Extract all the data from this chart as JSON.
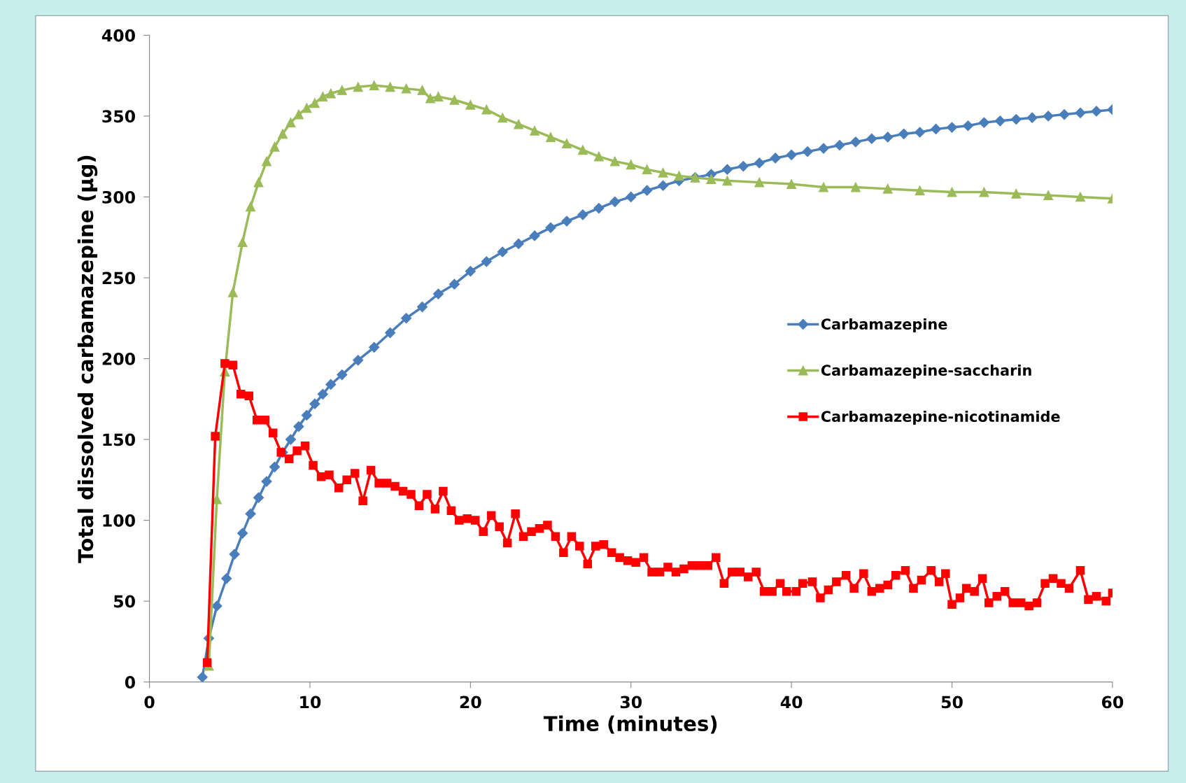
{
  "chart_data": {
    "type": "line",
    "xlabel": "Time (minutes)",
    "ylabel": "Total dissolved carbamazepine (µg)",
    "xlim": [
      0,
      60
    ],
    "ylim": [
      0,
      400
    ],
    "xticks": [
      0,
      10,
      20,
      30,
      40,
      50,
      60
    ],
    "yticks": [
      0,
      50,
      100,
      150,
      200,
      250,
      300,
      350,
      400
    ],
    "grid": false,
    "legend": "right",
    "series": [
      {
        "name": "Carbamazepine",
        "color": "#4a7ebb",
        "marker": "diamond",
        "x": [
          3.3,
          3.7,
          4.2,
          4.8,
          5.3,
          5.8,
          6.3,
          6.8,
          7.3,
          7.8,
          8.3,
          8.8,
          9.3,
          9.8,
          10.3,
          10.8,
          11.3,
          12,
          13,
          14,
          15,
          16,
          17,
          18,
          19,
          20,
          21,
          22,
          23,
          24,
          25,
          26,
          27,
          28,
          29,
          30,
          31,
          32,
          33,
          34,
          35,
          36,
          37,
          38,
          39,
          40,
          41,
          42,
          43,
          44,
          45,
          46,
          47,
          48,
          49,
          50,
          51,
          52,
          53,
          54,
          55,
          56,
          57,
          58,
          59,
          60
        ],
        "values": [
          3,
          27,
          47,
          64,
          79,
          92,
          104,
          114,
          124,
          133,
          142,
          150,
          158,
          165,
          172,
          178,
          184,
          190,
          199,
          207,
          216,
          225,
          232,
          240,
          246,
          254,
          260,
          266,
          271,
          276,
          281,
          285,
          289,
          293,
          297,
          300,
          304,
          307,
          310,
          312,
          314,
          317,
          319,
          321,
          324,
          326,
          328,
          330,
          332,
          334,
          336,
          337,
          339,
          340,
          342,
          343,
          344,
          346,
          347,
          348,
          349,
          350,
          351,
          352,
          353,
          354
        ]
      },
      {
        "name": "Carbamazepine-saccharin",
        "color": "#9bbb59",
        "marker": "triangle",
        "x": [
          3.7,
          4.2,
          4.7,
          5.2,
          5.8,
          6.3,
          6.8,
          7.3,
          7.8,
          8.3,
          8.8,
          9.3,
          9.8,
          10.3,
          10.8,
          11.3,
          12,
          13,
          14,
          15,
          16,
          17,
          17.5,
          18,
          19,
          20,
          21,
          22,
          23,
          24,
          25,
          26,
          27,
          28,
          29,
          30,
          31,
          32,
          33,
          34,
          35,
          36,
          38,
          40,
          42,
          44,
          46,
          48,
          50,
          52,
          54,
          56,
          58,
          60
        ],
        "values": [
          10,
          113,
          192,
          241,
          272,
          294,
          309,
          322,
          331,
          339,
          346,
          351,
          355,
          358,
          362,
          364,
          366,
          368,
          369,
          368,
          367,
          366,
          361,
          362,
          360,
          357,
          354,
          349,
          345,
          341,
          337,
          333,
          329,
          325,
          322,
          320,
          317,
          315,
          313,
          312,
          311,
          310,
          309,
          308,
          306,
          306,
          305,
          304,
          303,
          303,
          302,
          301,
          300,
          299
        ]
      },
      {
        "name": "Carbamazepine-nicotinamide",
        "color": "#ff0000",
        "marker": "square",
        "x": [
          3.6,
          4.1,
          4.7,
          5.2,
          5.7,
          6.2,
          6.7,
          7.2,
          7.7,
          8.2,
          8.7,
          9.2,
          9.7,
          10.2,
          10.7,
          11.2,
          11.8,
          12.3,
          12.8,
          13.3,
          13.8,
          14.3,
          14.8,
          15.3,
          15.8,
          16.3,
          16.8,
          17.3,
          17.8,
          18.3,
          18.8,
          19.3,
          19.8,
          20.3,
          20.8,
          21.3,
          21.8,
          22.3,
          22.8,
          23.3,
          23.8,
          24.3,
          24.8,
          25.3,
          25.8,
          26.3,
          26.8,
          27.3,
          27.8,
          28.3,
          28.8,
          29.3,
          29.8,
          30.3,
          30.8,
          31.3,
          31.8,
          32.3,
          32.8,
          33.3,
          33.8,
          34.3,
          34.8,
          35.3,
          35.8,
          36.3,
          36.8,
          37.3,
          37.8,
          38.3,
          38.8,
          39.3,
          39.7,
          40.3,
          40.7,
          41.3,
          41.8,
          42.3,
          42.8,
          43.4,
          43.9,
          44.5,
          45.0,
          45.5,
          46.0,
          46.5,
          47.1,
          47.6,
          48.1,
          48.7,
          49.2,
          49.6,
          50.0,
          50.5,
          50.9,
          51.4,
          51.9,
          52.3,
          52.8,
          53.3,
          53.8,
          54.3,
          54.8,
          55.3,
          55.8,
          56.3,
          56.8,
          57.3,
          58.0,
          58.5,
          59.0,
          59.6,
          60
        ],
        "values": [
          12,
          152,
          197,
          196,
          178,
          177,
          162,
          162,
          154,
          142,
          138,
          143,
          146,
          134,
          127,
          128,
          120,
          125,
          129,
          112,
          131,
          123,
          123,
          121,
          118,
          116,
          109,
          116,
          107,
          118,
          106,
          100,
          101,
          100,
          93,
          103,
          96,
          86,
          104,
          90,
          93,
          95,
          97,
          90,
          80,
          90,
          84,
          73,
          84,
          85,
          80,
          77,
          75,
          74,
          77,
          68,
          68,
          71,
          68,
          70,
          72,
          72,
          72,
          77,
          61,
          68,
          68,
          65,
          68,
          56,
          56,
          61,
          56,
          56,
          61,
          62,
          52,
          57,
          62,
          66,
          58,
          67,
          56,
          58,
          60,
          66,
          69,
          58,
          63,
          69,
          62,
          67,
          48,
          52,
          58,
          56,
          64,
          49,
          53,
          56,
          49,
          49,
          47,
          49,
          61,
          64,
          61,
          58,
          69,
          51,
          53,
          50,
          55
        ]
      }
    ]
  }
}
